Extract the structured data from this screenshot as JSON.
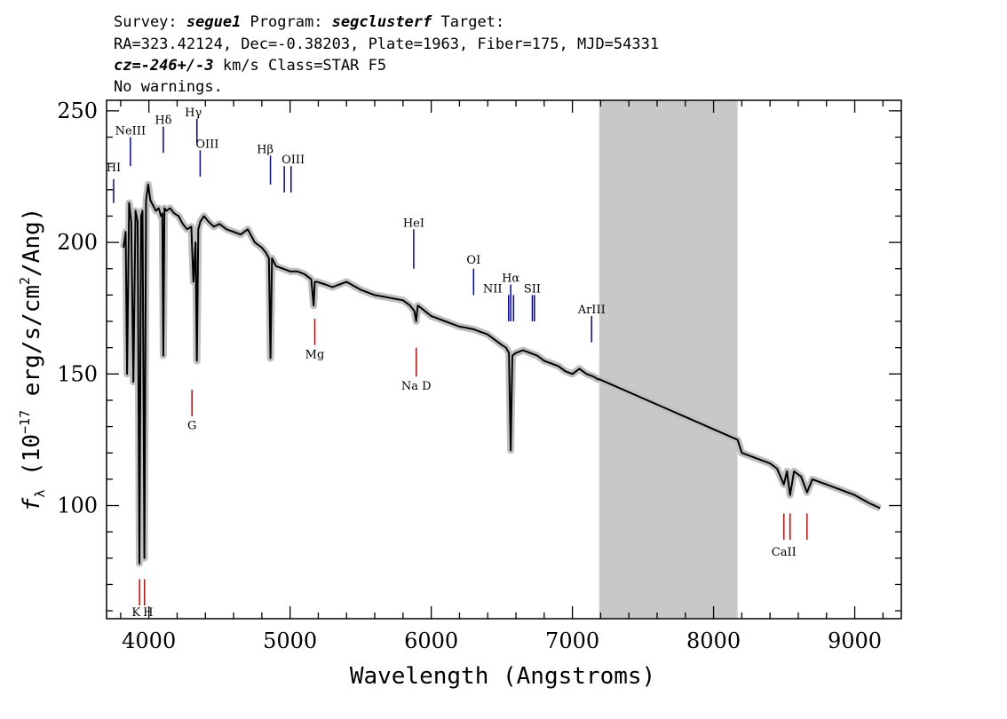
{
  "header": {
    "line1": {
      "survey_label": "Survey: ",
      "survey": "segue1",
      "program_label": " Program: ",
      "program": "segclusterf",
      "target_label": " Target:"
    },
    "line2": "RA=323.42124, Dec=-0.38203, Plate=1963, Fiber=175, MJD=54331",
    "line3": {
      "cz_label": "cz=",
      "cz_value": "-246+/-3",
      "cz_unit": " km/s Class=STAR F5"
    },
    "line4": "No warnings."
  },
  "colors": {
    "spectrum": "#000000",
    "error_band": "#c0c0c0",
    "masked_region": "#c8c8c8",
    "emission": "#0000bb",
    "absorption": "#dd0000",
    "axes": "#000000"
  },
  "chart_data": {
    "type": "line",
    "xlabel": "Wavelength (Angstroms)",
    "ylabel": "f_λ (10^-17 erg/s/cm^2/Ang)",
    "ylabel_parts": {
      "f": "f",
      "sub": "λ",
      "open": " (10",
      "exp1": "−17",
      "mid": " erg/s/cm",
      "exp2": "2",
      "close": "/Ang)"
    },
    "xlim": [
      3700,
      9330
    ],
    "ylim": [
      57,
      254
    ],
    "xticks": [
      4000,
      5000,
      6000,
      7000,
      8000,
      9000
    ],
    "yticks": [
      100,
      150,
      200,
      250
    ],
    "tick_labels_x": [
      "4000",
      "5000",
      "6000",
      "7000",
      "8000",
      "9000"
    ],
    "tick_labels_y": [
      "100",
      "150",
      "200",
      "250"
    ],
    "masked_region": [
      7190,
      8170
    ],
    "series": [
      {
        "x": [
          3820,
          3835,
          3845,
          3860,
          3875,
          3890,
          3905,
          3920,
          3933,
          3945,
          3955,
          3968,
          3980,
          3995,
          4010,
          4030,
          4050,
          4070,
          4085,
          4095,
          4102,
          4110,
          4125,
          4150,
          4180,
          4210,
          4240,
          4270,
          4300,
          4315,
          4330,
          4340,
          4350,
          4365,
          4390,
          4420,
          4460,
          4500,
          4550,
          4600,
          4650,
          4700,
          4750,
          4800,
          4830,
          4850,
          4861,
          4872,
          4900,
          4950,
          5000,
          5050,
          5100,
          5150,
          5167,
          5175,
          5190,
          5250,
          5300,
          5400,
          5500,
          5600,
          5700,
          5800,
          5850,
          5880,
          5893,
          5905,
          5930,
          6000,
          6100,
          6200,
          6300,
          6400,
          6450,
          6500,
          6530,
          6550,
          6563,
          6575,
          6600,
          6650,
          6700,
          6750,
          6800,
          6850,
          6900,
          6950,
          7000,
          7050,
          7100,
          7150,
          7180,
          7190,
          8170,
          8200,
          8300,
          8400,
          8450,
          8498,
          8520,
          8542,
          8570,
          8620,
          8662,
          8700,
          8800,
          8900,
          9000,
          9100,
          9180
        ],
        "y": [
          198,
          204,
          150,
          215,
          208,
          147,
          212,
          208,
          78,
          210,
          212,
          80,
          216,
          222,
          216,
          214,
          212,
          213,
          210,
          211,
          157,
          213,
          212,
          213,
          211,
          210,
          207,
          205,
          206,
          185,
          200,
          155,
          205,
          208,
          210,
          208,
          206,
          207,
          205,
          204,
          203,
          205,
          200,
          198,
          196,
          194,
          156,
          194,
          191,
          190,
          189,
          189,
          188,
          186,
          176,
          185,
          185,
          184,
          183,
          185,
          182,
          180,
          179,
          178,
          176,
          174,
          170,
          176,
          175,
          172,
          170,
          168,
          167,
          165,
          163,
          161,
          160,
          158,
          121,
          157,
          158,
          159,
          158,
          157,
          155,
          154,
          153,
          151,
          150,
          152,
          150,
          149,
          148,
          148,
          125,
          120,
          118,
          116,
          114,
          108,
          113,
          104,
          113,
          111,
          105,
          110,
          108,
          106,
          104,
          101,
          99
        ]
      }
    ],
    "line_markers": {
      "emission": [
        {
          "label": "HI",
          "x": 3750,
          "line_y": [
            215,
            224
          ],
          "label_y": 227,
          "label_x_offset": 0
        },
        {
          "label": "NeIII",
          "x": 3869,
          "line_y": [
            229,
            240
          ],
          "label_y": 241,
          "label_x_offset": 0
        },
        {
          "label": "Hδ",
          "x": 4102,
          "line_y": [
            234,
            244
          ],
          "label_y": 245,
          "label_x_offset": 0
        },
        {
          "label": "Hγ",
          "x": 4340,
          "line_y": [
            238,
            247
          ],
          "label_y": 248,
          "label_x_offset": -4
        },
        {
          "label": "OIII",
          "x": 4363,
          "line_y": [
            225,
            235
          ],
          "label_y": 236,
          "label_x_offset": 8
        },
        {
          "label": "Hβ",
          "x": 4861,
          "line_y": [
            222,
            233
          ],
          "label_y": 234,
          "label_x_offset": -6
        },
        {
          "label": "OIII",
          "x": 4959,
          "line_y": [
            219,
            229
          ],
          "label_y": 230,
          "label_x_offset": 10
        },
        {
          "label": "OIII",
          "x": 5007,
          "line_y": [
            219,
            229
          ],
          "label_y": null,
          "label_x_offset": 0
        },
        {
          "label": "HeI",
          "x": 5876,
          "line_y": [
            190,
            205
          ],
          "label_y": 206,
          "label_x_offset": 0
        },
        {
          "label": "OI",
          "x": 6300,
          "line_y": [
            180,
            190
          ],
          "label_y": 192,
          "label_x_offset": 0
        },
        {
          "label": "NII",
          "x": 6548,
          "line_y": [
            170,
            180
          ],
          "label_y": 181,
          "label_x_offset": -18
        },
        {
          "label": "Hα",
          "x": 6563,
          "line_y": [
            170,
            184
          ],
          "label_y": 185,
          "label_x_offset": 0
        },
        {
          "label": "NII",
          "x": 6583,
          "line_y": [
            170,
            180
          ],
          "label_y": null,
          "label_x_offset": 0
        },
        {
          "label": "SII",
          "x": 6716,
          "line_y": [
            170,
            180
          ],
          "label_y": 181,
          "label_x_offset": 0
        },
        {
          "label": "SII",
          "x": 6731,
          "line_y": [
            170,
            180
          ],
          "label_y": null,
          "label_x_offset": 0
        },
        {
          "label": "ArIII",
          "x": 7136,
          "line_y": [
            162,
            172
          ],
          "label_y": 173,
          "label_x_offset": 0
        }
      ],
      "absorption": [
        {
          "label": "K",
          "x": 3934,
          "line_y": [
            62,
            72
          ],
          "label_y": 58,
          "label_x_offset": -4
        },
        {
          "label": "H",
          "x": 3969,
          "line_y": [
            62,
            72
          ],
          "label_y": 58,
          "label_x_offset": 4
        },
        {
          "label": "G",
          "x": 4305,
          "line_y": [
            134,
            144
          ],
          "label_y": 129,
          "label_x_offset": 0
        },
        {
          "label": "Mg",
          "x": 5175,
          "line_y": [
            161,
            171
          ],
          "label_y": 156,
          "label_x_offset": 0
        },
        {
          "label": "Na D",
          "x": 5894,
          "line_y": [
            149,
            160
          ],
          "label_y": 144,
          "label_x_offset": 0
        },
        {
          "label": "CaII",
          "x": 8498,
          "line_y": [
            87,
            97
          ],
          "label_y": 81,
          "label_x_offset": 0
        },
        {
          "label": "CaII",
          "x": 8542,
          "line_y": [
            87,
            97
          ],
          "label_y": null,
          "label_x_offset": 0
        },
        {
          "label": "CaII",
          "x": 8662,
          "line_y": [
            87,
            97
          ],
          "label_y": null,
          "label_x_offset": 0
        }
      ]
    }
  }
}
